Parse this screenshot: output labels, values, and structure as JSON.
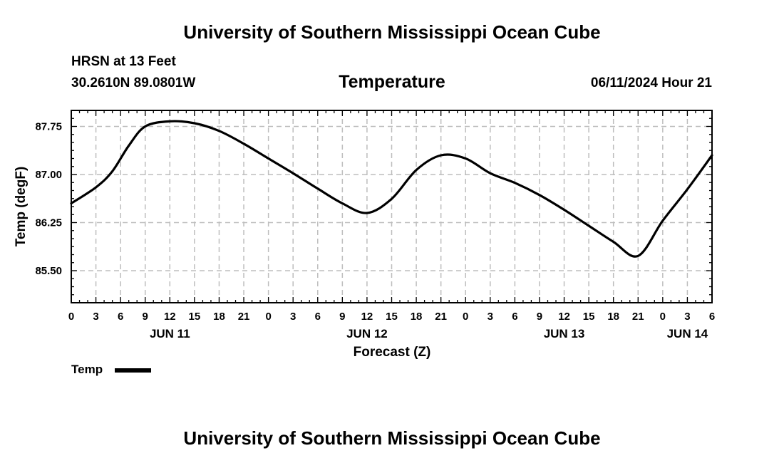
{
  "header": {
    "top_title": "University of Southern Mississippi Ocean Cube",
    "station": "HRSN at 13 Feet",
    "coords": "30.2610N  89.0801W",
    "variable": "Temperature",
    "issued": "06/11/2024 Hour 21",
    "bottom_title": "University of Southern Mississippi Ocean Cube"
  },
  "legend": {
    "label": "Temp"
  },
  "chart_data": {
    "type": "line",
    "title": "Temperature",
    "xlabel": "Forecast (Z)",
    "ylabel": "Temp (degF)",
    "x_units": "hours since 2024-06-11 00Z",
    "xlim": [
      0,
      78
    ],
    "ylim": [
      85.0,
      88.0
    ],
    "y_ticks": [
      85.5,
      86.25,
      87.0,
      87.75
    ],
    "y_tick_labels": [
      "85.50",
      "86.25",
      "87.00",
      "87.75"
    ],
    "x_ticks": [
      0,
      3,
      6,
      9,
      12,
      15,
      18,
      21,
      24,
      27,
      30,
      33,
      36,
      39,
      42,
      45,
      48,
      51,
      54,
      57,
      60,
      63,
      66,
      69,
      72,
      75,
      78
    ],
    "x_tick_labels": [
      "0",
      "3",
      "6",
      "9",
      "12",
      "15",
      "18",
      "21",
      "0",
      "3",
      "6",
      "9",
      "12",
      "15",
      "18",
      "21",
      "0",
      "3",
      "6",
      "9",
      "12",
      "15",
      "18",
      "21",
      "0",
      "3",
      "6"
    ],
    "date_labels": [
      {
        "x": 12,
        "label": "JUN 11"
      },
      {
        "x": 36,
        "label": "JUN 12"
      },
      {
        "x": 60,
        "label": "JUN 13"
      },
      {
        "x": 75,
        "label": "JUN 14"
      }
    ],
    "grid": true,
    "series": [
      {
        "name": "Temp",
        "x": [
          0,
          3,
          5,
          7,
          9,
          12,
          15,
          18,
          21,
          24,
          27,
          30,
          33,
          36,
          39,
          42,
          45,
          48,
          51,
          54,
          57,
          60,
          63,
          66,
          69,
          72,
          75,
          78
        ],
        "y": [
          86.55,
          86.8,
          87.05,
          87.45,
          87.75,
          87.83,
          87.8,
          87.68,
          87.48,
          87.25,
          87.02,
          86.78,
          86.55,
          86.4,
          86.62,
          87.07,
          87.3,
          87.25,
          87.02,
          86.87,
          86.68,
          86.45,
          86.2,
          85.95,
          85.73,
          86.28,
          86.77,
          87.3
        ]
      }
    ]
  }
}
